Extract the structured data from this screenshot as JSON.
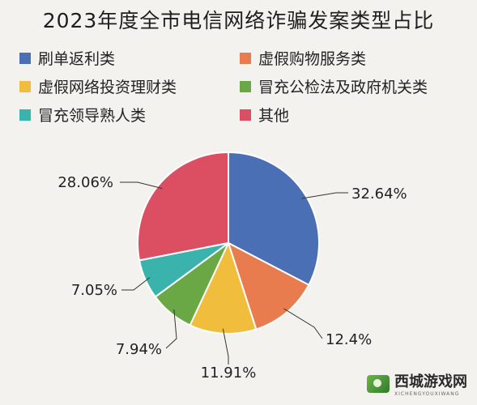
{
  "chart_data": {
    "type": "pie",
    "title": "2023年度全市电信网络诈骗发案类型占比",
    "categories": [
      "刷单返利类",
      "虚假购物服务类",
      "虚假网络投资理财类",
      "冒充公检法及政府机关类",
      "冒充领导熟人类",
      "其他"
    ],
    "values": [
      32.64,
      12.4,
      11.91,
      7.94,
      7.05,
      28.06
    ],
    "value_labels": [
      "32.64%",
      "12.4%",
      "11.91%",
      "7.94%",
      "7.05%",
      "28.06%"
    ],
    "colors": [
      "#4a6fb5",
      "#e87c4f",
      "#f0bd3c",
      "#6aa846",
      "#3ab3ad",
      "#dc4f63"
    ],
    "legend_position": "top"
  },
  "watermark": {
    "name": "西城游戏网",
    "subtitle": "XICHENGYOUXIWANG"
  }
}
